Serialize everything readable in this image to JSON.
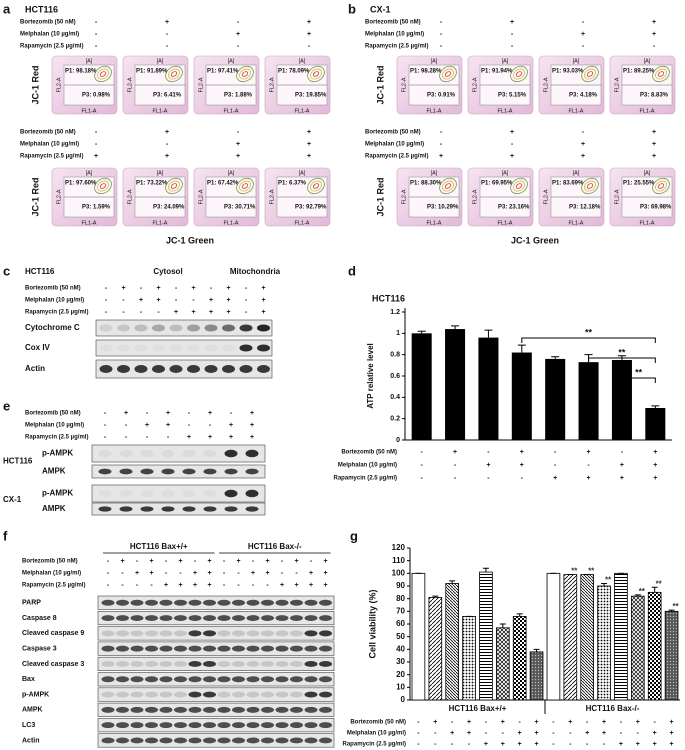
{
  "flow_axes": {
    "gate": "[A]",
    "y": "FL2-A",
    "x": "FL1-A"
  },
  "panel_a": {
    "letter": "a",
    "cell_line": "HCT116",
    "y_label": "JC-1 Red",
    "x_label": "JC-1 Green",
    "treatments_top": [
      {
        "label": "Bortezomib (50 nM)",
        "signs": [
          "-",
          "+",
          "-",
          "+"
        ]
      },
      {
        "label": "Melphalan (10 µg/ml)",
        "signs": [
          "-",
          "-",
          "+",
          "+"
        ]
      },
      {
        "label": "Rapamycin (2.5 µg/ml)",
        "signs": [
          "-",
          "-",
          "-",
          "-"
        ]
      }
    ],
    "treatments_bottom": [
      {
        "label": "Bortezomib (50 nM)",
        "signs": [
          "-",
          "+",
          "-",
          "+"
        ]
      },
      {
        "label": "Melphalan (10 µg/ml)",
        "signs": [
          "-",
          "-",
          "+",
          "+"
        ]
      },
      {
        "label": "Rapamycin (2.5 µg/ml)",
        "signs": [
          "+",
          "+",
          "+",
          "+"
        ]
      }
    ],
    "plots_top": [
      {
        "p1": "P1: 98.18%",
        "p3": "P3: 0.98%"
      },
      {
        "p1": "P1: 91.89%",
        "p3": "P3: 6.41%"
      },
      {
        "p1": "P1: 97.41%",
        "p3": "P3: 1.88%"
      },
      {
        "p1": "P1: 78.09%",
        "p3": "P3: 19.85%"
      }
    ],
    "plots_bottom": [
      {
        "p1": "P1: 97.60%",
        "p3": "P3: 1.59%"
      },
      {
        "p1": "P1: 73.22%",
        "p3": "P3: 24.09%"
      },
      {
        "p1": "P1: 67.42%",
        "p3": "P3: 30.71%"
      },
      {
        "p1": "P1: 6.37%",
        "p3": "P3: 92.79%"
      }
    ]
  },
  "panel_b": {
    "letter": "b",
    "cell_line": "CX-1",
    "y_label": "JC-1 Red",
    "x_label": "JC-1 Green",
    "treatments_top": [
      {
        "label": "Bortezomib (50 nM)",
        "signs": [
          "-",
          "+",
          "-",
          "+"
        ]
      },
      {
        "label": "Melphalan (10 µg/ml)",
        "signs": [
          "-",
          "-",
          "+",
          "+"
        ]
      },
      {
        "label": "Rapamycin (2.5 µg/ml)",
        "signs": [
          "-",
          "-",
          "-",
          "-"
        ]
      }
    ],
    "treatments_bottom": [
      {
        "label": "Bortezomib (50 nM)",
        "signs": [
          "-",
          "+",
          "-",
          "+"
        ]
      },
      {
        "label": "Melphalan (10 µg/ml)",
        "signs": [
          "-",
          "-",
          "+",
          "+"
        ]
      },
      {
        "label": "Rapamycin (2.5 µg/ml)",
        "signs": [
          "+",
          "+",
          "+",
          "+"
        ]
      }
    ],
    "plots_top": [
      {
        "p1": "P1: 98.28%",
        "p3": "P3: 0.91%"
      },
      {
        "p1": "P1: 91.94%",
        "p3": "P3: 5.15%"
      },
      {
        "p1": "P1: 93.03%",
        "p3": "P3: 4.18%"
      },
      {
        "p1": "P1: 89.25%",
        "p3": "P3: 8.83%"
      }
    ],
    "plots_bottom": [
      {
        "p1": "P1: 88.30%",
        "p3": "P3: 10.29%"
      },
      {
        "p1": "P1: 69.95%",
        "p3": "P3: 23.16%"
      },
      {
        "p1": "P1: 83.69%",
        "p3": "P3: 12.18%"
      },
      {
        "p1": "P1: 25.55%",
        "p3": "P3: 69.98%"
      }
    ]
  },
  "panel_c": {
    "letter": "c",
    "cell_line": "HCT116",
    "fractions": [
      "Cytosol",
      "Mitochondria"
    ],
    "treatments": [
      {
        "label": "Bortezomib (50 nM)",
        "signs": [
          "-",
          "+",
          "-",
          "+",
          "-",
          "+",
          "-",
          "+",
          "-",
          "+"
        ]
      },
      {
        "label": "Melphalan (10 µg/ml)",
        "signs": [
          "-",
          "-",
          "+",
          "+",
          "-",
          "-",
          "+",
          "+",
          "-",
          "+"
        ]
      },
      {
        "label": "Rapamycin (2.5 µg/ml)",
        "signs": [
          "-",
          "-",
          "-",
          "-",
          "+",
          "+",
          "+",
          "+",
          "-",
          "+"
        ]
      }
    ],
    "blots": [
      "Cytochrome C",
      "Cox IV",
      "Actin"
    ]
  },
  "panel_e": {
    "letter": "e",
    "treatments": [
      {
        "label": "Bortezomib (50 nM)",
        "signs": [
          "-",
          "+",
          "-",
          "+",
          "-",
          "+",
          "-",
          "+"
        ]
      },
      {
        "label": "Melphalan (10 µg/ml)",
        "signs": [
          "-",
          "-",
          "+",
          "+",
          "-",
          "-",
          "+",
          "+"
        ]
      },
      {
        "label": "Rapamycin (2.5 µg/ml)",
        "signs": [
          "-",
          "-",
          "-",
          "-",
          "+",
          "+",
          "+",
          "+"
        ]
      }
    ],
    "blot_groups": [
      {
        "cell_line": "HCT116",
        "blots": [
          "p-AMPK",
          "AMPK"
        ]
      },
      {
        "cell_line": "CX-1",
        "blots": [
          "p-AMPK",
          "AMPK"
        ]
      }
    ]
  },
  "panel_f": {
    "letter": "f",
    "groups": [
      "HCT116 Bax+/+",
      "HCT116 Bax-/-"
    ],
    "treatments": [
      {
        "label": "Bortezomib (50 nM)",
        "signs": [
          "-",
          "+",
          "-",
          "+",
          "-",
          "+",
          "-",
          "+",
          "-",
          "+",
          "-",
          "+",
          "-",
          "+",
          "-",
          "+"
        ]
      },
      {
        "label": "Melphalan (10 µg/ml)",
        "signs": [
          "-",
          "-",
          "+",
          "+",
          "-",
          "-",
          "+",
          "+",
          "-",
          "-",
          "+",
          "+",
          "-",
          "-",
          "+",
          "+"
        ]
      },
      {
        "label": "Rapamycin (2.5 µg/ml)",
        "signs": [
          "-",
          "-",
          "-",
          "-",
          "+",
          "+",
          "+",
          "+",
          "-",
          "-",
          "-",
          "-",
          "+",
          "+",
          "+",
          "+"
        ]
      }
    ],
    "blots": [
      "PARP",
      "Caspase 8",
      "Cleaved caspase 9",
      "Caspase 3",
      "Cleaved caspase 3",
      "Bax",
      "p-AMPK",
      "AMPK",
      "LC3",
      "Actin"
    ]
  },
  "chart_data": [
    {
      "type": "bar",
      "panel": "d",
      "title": "HCT116",
      "y_label": "ATP relative level",
      "color": "#000000",
      "values": [
        1.0,
        1.04,
        0.96,
        0.82,
        0.76,
        0.73,
        0.75,
        0.3
      ],
      "errors": [
        0.02,
        0.03,
        0.07,
        0.07,
        0.02,
        0.07,
        0.04,
        0.02
      ],
      "ylim": [
        0,
        1.2
      ],
      "yticks": [
        0,
        0.2,
        0.4,
        0.6,
        0.8,
        1,
        1.2
      ],
      "brackets": [
        {
          "between": [
            3,
            7
          ],
          "label": "**"
        },
        {
          "between": [
            5,
            7
          ],
          "label": "**"
        },
        {
          "between": [
            6,
            7
          ],
          "label": "**"
        }
      ],
      "treatments": [
        {
          "label": "Bortezomib (50 nM)",
          "signs": [
            "-",
            "+",
            "-",
            "+",
            "-",
            "+",
            "-",
            "+"
          ]
        },
        {
          "label": "Melphalan (10 µg/ml)",
          "signs": [
            "-",
            "-",
            "+",
            "+",
            "-",
            "-",
            "+",
            "+"
          ]
        },
        {
          "label": "Rapamycin (2.5 µg/ml)",
          "signs": [
            "-",
            "-",
            "-",
            "-",
            "+",
            "+",
            "+",
            "+"
          ]
        }
      ]
    },
    {
      "type": "grouped_bar",
      "panel": "g",
      "y_label": "Cell viability (%)",
      "ylim": [
        0,
        120
      ],
      "yticks": [
        0,
        10,
        20,
        30,
        40,
        50,
        60,
        70,
        80,
        90,
        100,
        110,
        120
      ],
      "series": [
        {
          "name": "HCT116 Bax+/+",
          "values": [
            100,
            81,
            92,
            66,
            101,
            57,
            66,
            38
          ],
          "errors": [
            0,
            1,
            2,
            0,
            3,
            3,
            2,
            2
          ],
          "significance": [
            null,
            null,
            null,
            null,
            null,
            null,
            null,
            null
          ]
        },
        {
          "name": "HCT116 Bax-/-",
          "values": [
            100,
            99,
            99,
            90,
            100,
            82,
            85,
            70
          ],
          "errors": [
            0,
            0,
            0,
            2,
            0,
            1,
            4,
            1
          ],
          "significance": [
            null,
            "**",
            "**",
            "**",
            null,
            "**",
            "**",
            "**"
          ]
        }
      ],
      "treatments": [
        {
          "label": "Bortezomib (50 nM)",
          "signs": [
            "-",
            "+",
            "-",
            "+",
            "-",
            "+",
            "-",
            "+",
            "-",
            "+",
            "-",
            "+",
            "-",
            "+",
            "-",
            "+"
          ]
        },
        {
          "label": "Melphalan (10 µg/ml)",
          "signs": [
            "-",
            "-",
            "+",
            "+",
            "-",
            "-",
            "+",
            "+",
            "-",
            "-",
            "+",
            "+",
            "-",
            "-",
            "+",
            "+"
          ]
        },
        {
          "label": "Rapamycin (2.5 µg/ml)",
          "signs": [
            "-",
            "-",
            "-",
            "-",
            "+",
            "+",
            "+",
            "+",
            "-",
            "-",
            "-",
            "-",
            "+",
            "+",
            "+",
            "+"
          ]
        }
      ]
    }
  ]
}
